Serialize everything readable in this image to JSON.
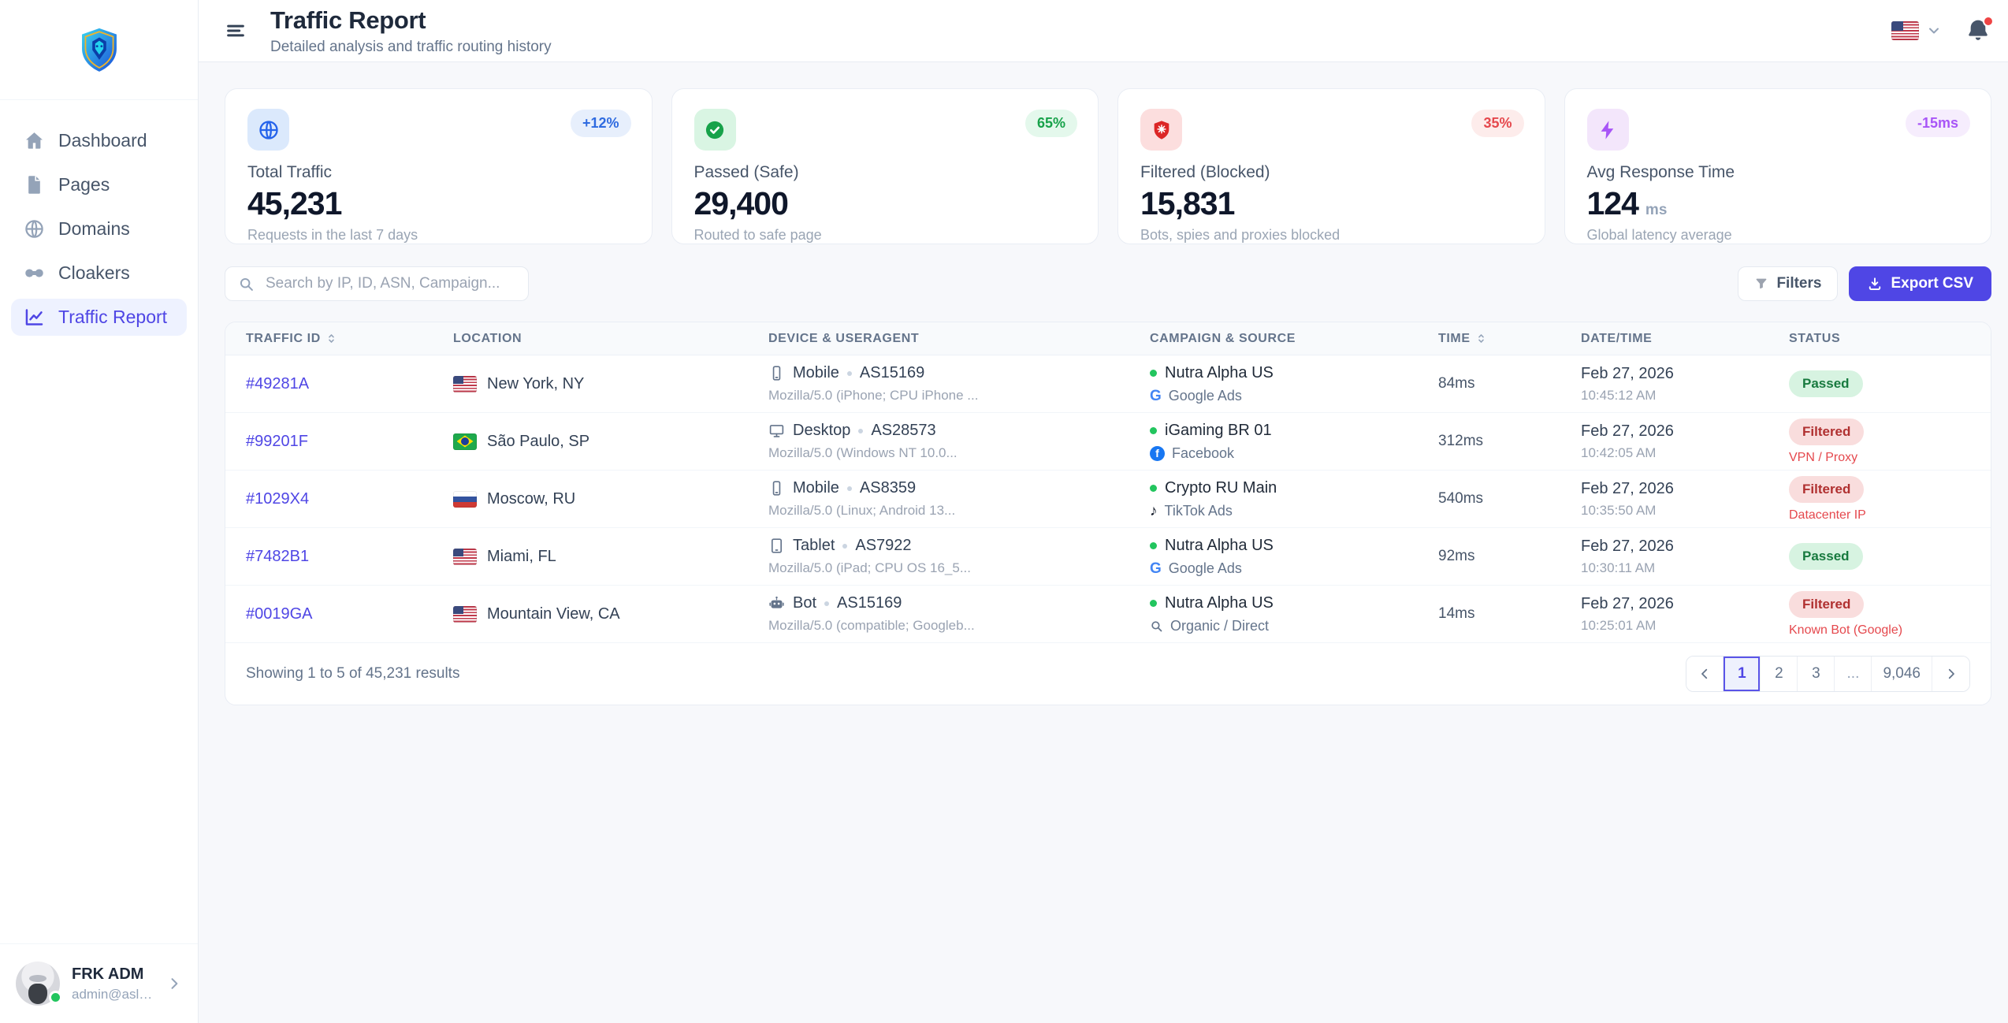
{
  "app": {
    "title": "Traffic Report",
    "subtitle": "Detailed analysis and traffic routing history"
  },
  "colors": {
    "accent": "#4f46e5",
    "passed_green": "#16a34a",
    "filtered_red": "#dc2626",
    "info_blue": "#2563eb",
    "latency_purple": "#a855f7"
  },
  "sidebar": {
    "logo": "lion-shield-logo",
    "items": [
      {
        "label": "Dashboard",
        "icon": "home",
        "active": false
      },
      {
        "label": "Pages",
        "icon": "file",
        "active": false
      },
      {
        "label": "Domains",
        "icon": "globe",
        "active": false
      },
      {
        "label": "Cloakers",
        "icon": "cloak",
        "active": false
      },
      {
        "label": "Traffic Report",
        "icon": "chart",
        "active": true
      }
    ],
    "user": {
      "name": "FRK ADM",
      "email": "admin@aslanphant...",
      "status": "online"
    }
  },
  "topbar": {
    "language_flag": "us",
    "has_notification": true
  },
  "stats": [
    {
      "icon": "globe",
      "theme": "blue",
      "badge": "+12%",
      "label": "Total Traffic",
      "value": "45,231",
      "unit": "",
      "sub": "Requests in the last 7 days"
    },
    {
      "icon": "check",
      "theme": "green",
      "badge": "65%",
      "label": "Passed (Safe)",
      "value": "29,400",
      "unit": "",
      "sub": "Routed to safe page"
    },
    {
      "icon": "shield",
      "theme": "red",
      "badge": "35%",
      "label": "Filtered (Blocked)",
      "value": "15,831",
      "unit": "",
      "sub": "Bots, spies and proxies blocked"
    },
    {
      "icon": "bolt",
      "theme": "purple",
      "badge": "-15ms",
      "label": "Avg Response Time",
      "value": "124",
      "unit": "ms",
      "sub": "Global latency average"
    }
  ],
  "toolbar": {
    "search_placeholder": "Search by IP, ID, ASN, Campaign...",
    "filters_label": "Filters",
    "export_label": "Export CSV"
  },
  "table": {
    "columns": [
      {
        "label": "Traffic ID",
        "sortable": true
      },
      {
        "label": "Location",
        "sortable": false
      },
      {
        "label": "Device & Useragent",
        "sortable": false
      },
      {
        "label": "Campaign & Source",
        "sortable": false
      },
      {
        "label": "Time",
        "sortable": true
      },
      {
        "label": "Date/Time",
        "sortable": false
      },
      {
        "label": "Status",
        "sortable": false
      }
    ],
    "rows": [
      {
        "id": "#49281A",
        "flag": "us",
        "location": "New York, NY",
        "device": "Mobile",
        "device_icon": "mobile",
        "asn": "AS15169",
        "useragent": "Mozilla/5.0 (iPhone; CPU iPhone ...",
        "campaign": "Nutra Alpha US",
        "source": "Google Ads",
        "source_icon": "google",
        "time": "84ms",
        "date": "Feb 27, 2026",
        "timestamp": "10:45:12 AM",
        "status": "Passed",
        "status_type": "passed",
        "status_detail": ""
      },
      {
        "id": "#99201F",
        "flag": "br",
        "location": "São Paulo, SP",
        "device": "Desktop",
        "device_icon": "desktop",
        "asn": "AS28573",
        "useragent": "Mozilla/5.0 (Windows NT 10.0...",
        "campaign": "iGaming BR 01",
        "source": "Facebook",
        "source_icon": "facebook",
        "time": "312ms",
        "date": "Feb 27, 2026",
        "timestamp": "10:42:05 AM",
        "status": "Filtered",
        "status_type": "filtered",
        "status_detail": "VPN / Proxy"
      },
      {
        "id": "#1029X4",
        "flag": "ru",
        "location": "Moscow, RU",
        "device": "Mobile",
        "device_icon": "mobile",
        "asn": "AS8359",
        "useragent": "Mozilla/5.0 (Linux; Android 13...",
        "campaign": "Crypto RU Main",
        "source": "TikTok Ads",
        "source_icon": "tiktok",
        "time": "540ms",
        "date": "Feb 27, 2026",
        "timestamp": "10:35:50 AM",
        "status": "Filtered",
        "status_type": "filtered",
        "status_detail": "Datacenter IP"
      },
      {
        "id": "#7482B1",
        "flag": "us",
        "location": "Miami, FL",
        "device": "Tablet",
        "device_icon": "tablet",
        "asn": "AS7922",
        "useragent": "Mozilla/5.0 (iPad; CPU OS 16_5...",
        "campaign": "Nutra Alpha US",
        "source": "Google Ads",
        "source_icon": "google",
        "time": "92ms",
        "date": "Feb 27, 2026",
        "timestamp": "10:30:11 AM",
        "status": "Passed",
        "status_type": "passed",
        "status_detail": ""
      },
      {
        "id": "#0019GA",
        "flag": "us",
        "location": "Mountain View, CA",
        "device": "Bot",
        "device_icon": "bot",
        "asn": "AS15169",
        "useragent": "Mozilla/5.0 (compatible; Googleb...",
        "campaign": "Nutra Alpha US",
        "source": "Organic / Direct",
        "source_icon": "magnifier",
        "time": "14ms",
        "date": "Feb 27, 2026",
        "timestamp": "10:25:01 AM",
        "status": "Filtered",
        "status_type": "filtered",
        "status_detail": "Known Bot (Google)"
      }
    ]
  },
  "pagination": {
    "summary": "Showing 1 to 5 of 45,231 results",
    "pages": [
      "1",
      "2",
      "3",
      "...",
      "9,046"
    ],
    "active_page": "1"
  }
}
